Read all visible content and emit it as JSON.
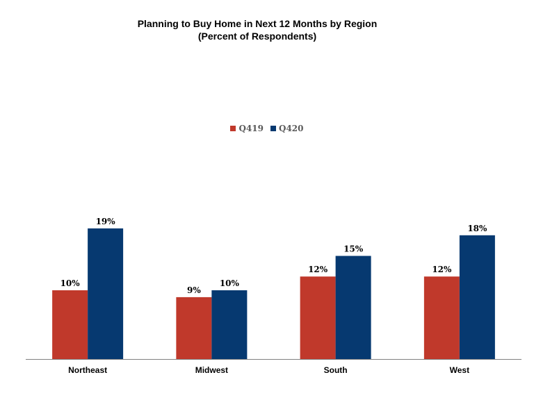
{
  "chart_data": {
    "type": "bar",
    "title": "Planning to Buy Home in Next 12 Months by Region",
    "subtitle": "(Percent of Respondents)",
    "categories": [
      "Northeast",
      "Midwest",
      "South",
      "West"
    ],
    "series": [
      {
        "name": "Q419",
        "values": [
          10,
          9,
          12,
          12
        ],
        "labels": [
          "10%",
          "9%",
          "12%",
          "12%"
        ],
        "color": "#C0392B"
      },
      {
        "name": "Q420",
        "values": [
          19,
          10,
          15,
          18
        ],
        "labels": [
          "19%",
          "10%",
          "15%",
          "18%"
        ],
        "color": "#063970"
      }
    ],
    "ylim": [
      0,
      20
    ],
    "grid": false,
    "legend_position": "top-center"
  }
}
